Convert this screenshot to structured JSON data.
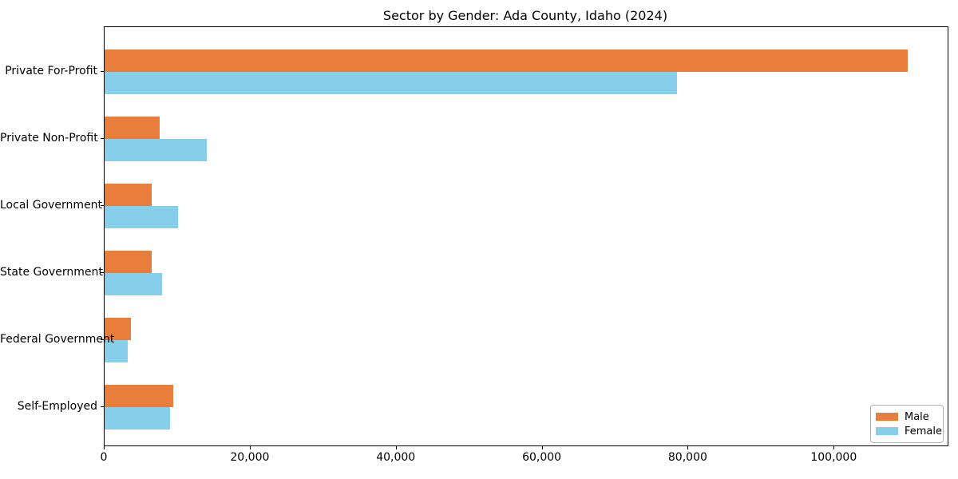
{
  "chart_data": {
    "type": "bar",
    "orientation": "horizontal",
    "title": "Sector by Gender: Ada County, Idaho (2024)",
    "categories": [
      "Private For-Profit",
      "Private Non-Profit",
      "Local Government",
      "State Government",
      "Federal Government",
      "Self-Employed"
    ],
    "series": [
      {
        "name": "Male",
        "color": "#e87d3c",
        "values": [
          110000,
          7500,
          6500,
          6500,
          3600,
          9400
        ]
      },
      {
        "name": "Female",
        "color": "#87ceeb",
        "values": [
          78400,
          14000,
          10100,
          7900,
          3200,
          9000
        ]
      }
    ],
    "xlabel": "",
    "ylabel": "",
    "xlim": [
      0,
      115500
    ],
    "x_ticks": [
      0,
      20000,
      40000,
      60000,
      80000,
      100000
    ],
    "x_tick_labels": [
      "0",
      "20,000",
      "40,000",
      "60,000",
      "80,000",
      "100,000"
    ],
    "grid": false,
    "legend": {
      "position": "lower right",
      "entries": [
        "Male",
        "Female"
      ]
    },
    "colors": {
      "male": "#e87d3c",
      "female": "#87ceeb",
      "axis": "#000000",
      "background": "#ffffff",
      "legend_border": "#b3b3b3"
    }
  }
}
